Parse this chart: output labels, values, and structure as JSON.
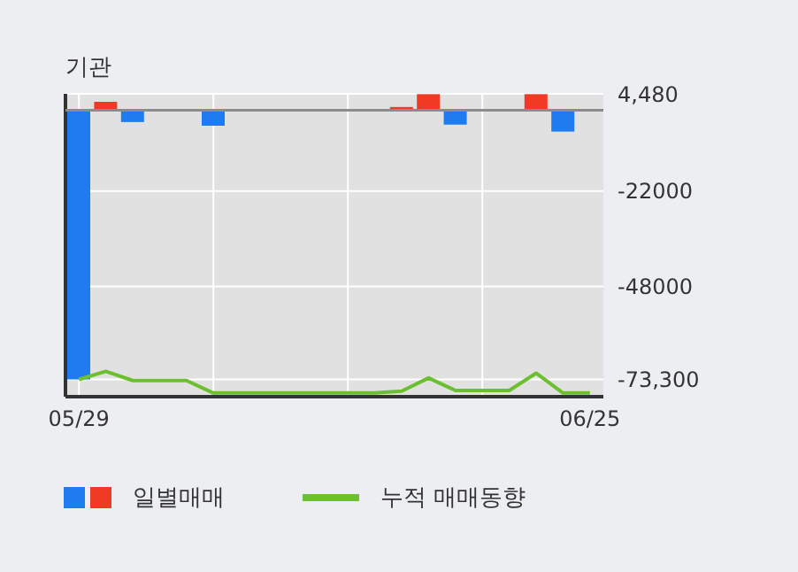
{
  "chart_data": {
    "type": "bar",
    "title": "기관",
    "categories": [
      "05/29",
      null,
      null,
      null,
      null,
      null,
      null,
      null,
      null,
      null,
      null,
      null,
      null,
      null,
      null,
      null,
      null,
      null,
      null,
      "06/25"
    ],
    "series": [
      {
        "name": "일별매매",
        "colors": [
          "#1e7cf0",
          "#f03a23",
          "#1e7cf0",
          "#1e7cf0",
          "#1e7cf0",
          "#1e7cf0",
          "#1e7cf0",
          "#1e7cf0",
          "#1e7cf0",
          "#1e7cf0",
          "#1e7cf0",
          "#1e7cf0",
          "#f03a23",
          "#f03a23",
          "#1e7cf0",
          "#1e7cf0",
          "#1e7cf0",
          "#f03a23",
          "#1e7cf0",
          "#1e7cf0"
        ],
        "values": [
          -73300,
          2300,
          -3200,
          null,
          null,
          -4200,
          null,
          null,
          null,
          null,
          null,
          null,
          900,
          4400,
          -3900,
          null,
          null,
          4400,
          -5800,
          null
        ]
      },
      {
        "name": "누적 매매동향",
        "type": "line",
        "color": "#6cbf2e",
        "values": [
          -73300,
          -71100,
          -73600,
          -73600,
          -73600,
          -77000,
          -77000,
          -77000,
          -77000,
          -77000,
          -77000,
          -77000,
          -76500,
          -72900,
          -76300,
          -76300,
          -76300,
          -71600,
          -77000,
          -77000
        ]
      }
    ],
    "ylim": [
      -78000,
      4480
    ],
    "yticks": [
      {
        "value": 4480,
        "label": "4,480"
      },
      {
        "value": -22000,
        "label": "-22000"
      },
      {
        "value": -48000,
        "label": "-48000"
      },
      {
        "value": -73300,
        "label": "-73,300"
      }
    ],
    "ref_lines": [
      {
        "axis": "y",
        "value": 0,
        "color": "#8c8c8c"
      }
    ],
    "grid": true,
    "legend": "bottom",
    "marker": "none"
  }
}
